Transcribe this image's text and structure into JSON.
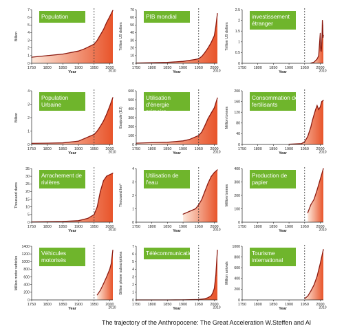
{
  "caption": "The trajectory of the Anthropocene: The Great Acceleration W.Steffen and Al",
  "colors": {
    "panel_label_bg": "#6fb52c",
    "panel_label_text": "#ffffff",
    "curve": "#8b1a10",
    "fill_dark": "#e8542a",
    "fill_light": "#fde7da",
    "marker": "#333333"
  },
  "x_axis": {
    "label": "Year",
    "ticks": [
      1750,
      1800,
      1850,
      1900,
      1950,
      2000
    ],
    "end_tick": "2010",
    "marker_year": 1950,
    "range": [
      1750,
      2010
    ]
  },
  "chart_data": [
    {
      "type": "area",
      "title": "Population",
      "ylabel": "Billion",
      "ylim": [
        0,
        7
      ],
      "yticks": [
        0,
        1,
        2,
        3,
        4,
        5,
        6,
        7
      ],
      "x": [
        1750,
        1800,
        1850,
        1900,
        1920,
        1940,
        1950,
        1960,
        1970,
        1980,
        1990,
        2000,
        2010
      ],
      "values": [
        0.8,
        1.0,
        1.2,
        1.6,
        1.9,
        2.3,
        2.5,
        3.0,
        3.7,
        4.4,
        5.3,
        6.1,
        6.9
      ]
    },
    {
      "type": "area",
      "title": "PIB mondial",
      "ylabel": "Trillion US dollars",
      "ylim": [
        0,
        70
      ],
      "yticks": [
        0,
        10,
        20,
        30,
        40,
        50,
        60,
        70
      ],
      "x": [
        1750,
        1800,
        1850,
        1900,
        1940,
        1950,
        1960,
        1970,
        1980,
        1990,
        2000,
        2005,
        2010
      ],
      "values": [
        0.4,
        0.7,
        1.2,
        2.5,
        5,
        6,
        9,
        14,
        20,
        27,
        36,
        48,
        65
      ]
    },
    {
      "type": "area",
      "title": "investissement étranger",
      "ylabel": "Trillion US dollars",
      "ylim": [
        0,
        2.5
      ],
      "yticks": [
        0,
        0.5,
        1.0,
        1.5,
        2.0,
        2.5
      ],
      "x": [
        1970,
        1980,
        1990,
        1995,
        2000,
        2001,
        2002,
        2003,
        2004,
        2005,
        2006,
        2007,
        2008,
        2009,
        2010
      ],
      "values": [
        0.01,
        0.05,
        0.2,
        0.35,
        1.4,
        0.8,
        0.6,
        0.55,
        0.7,
        0.95,
        1.4,
        2.0,
        1.75,
        1.2,
        1.3
      ]
    },
    {
      "type": "area",
      "title": "Population Urbaine",
      "ylabel": "Billion",
      "ylim": [
        0,
        4
      ],
      "yticks": [
        0,
        1,
        2,
        3,
        4
      ],
      "x": [
        1750,
        1800,
        1850,
        1900,
        1950,
        1960,
        1970,
        1980,
        1990,
        2000,
        2010
      ],
      "values": [
        0.08,
        0.1,
        0.12,
        0.25,
        0.75,
        1.0,
        1.35,
        1.75,
        2.25,
        2.85,
        3.5
      ]
    },
    {
      "type": "area",
      "title": "Utilisation d'énergie primaire",
      "ylabel": "Exajoule (EJ)",
      "ylim": [
        0,
        600
      ],
      "yticks": [
        0,
        100,
        200,
        300,
        400,
        500,
        600
      ],
      "x": [
        1750,
        1800,
        1850,
        1900,
        1920,
        1950,
        1960,
        1970,
        1980,
        1990,
        2000,
        2010
      ],
      "values": [
        15,
        20,
        25,
        40,
        55,
        100,
        140,
        210,
        290,
        350,
        410,
        520
      ]
    },
    {
      "type": "area",
      "title": "Consommation de fertilisants",
      "ylabel": "Million tonnes",
      "ylim": [
        0,
        200
      ],
      "yticks": [
        0,
        40,
        80,
        120,
        160,
        200
      ],
      "x": [
        1900,
        1940,
        1950,
        1960,
        1970,
        1975,
        1980,
        1985,
        1990,
        1995,
        2000,
        2005,
        2010
      ],
      "values": [
        1,
        3,
        10,
        30,
        65,
        90,
        110,
        130,
        145,
        130,
        140,
        160,
        165
      ]
    },
    {
      "type": "area",
      "title": "Arrachement de rivières",
      "ylabel": "Thousand dams",
      "ylim": [
        0,
        35
      ],
      "yticks": [
        0,
        5,
        10,
        15,
        20,
        25,
        30,
        35
      ],
      "x": [
        1750,
        1800,
        1850,
        1900,
        1930,
        1950,
        1960,
        1970,
        1980,
        1990,
        2000,
        2010
      ],
      "values": [
        0.2,
        0.3,
        0.5,
        1,
        2.5,
        5,
        10,
        20,
        27,
        30,
        31,
        32
      ]
    },
    {
      "type": "area",
      "title": "Utilisation de l'eau",
      "ylabel": "Thousand km³",
      "ylim": [
        0,
        4
      ],
      "yticks": [
        0,
        1,
        2,
        3,
        4
      ],
      "x": [
        1900,
        1920,
        1940,
        1950,
        1960,
        1970,
        1980,
        1990,
        2000,
        2010
      ],
      "values": [
        0.6,
        0.8,
        1.0,
        1.3,
        1.7,
        2.3,
        2.9,
        3.4,
        3.7,
        3.9
      ]
    },
    {
      "type": "area",
      "title": "Production de papier",
      "ylabel": "Million tonnes",
      "ylim": [
        0,
        400
      ],
      "yticks": [
        0,
        100,
        200,
        300,
        400
      ],
      "x": [
        1960,
        1970,
        1980,
        1990,
        2000,
        2010
      ],
      "values": [
        70,
        130,
        170,
        240,
        320,
        400
      ]
    },
    {
      "type": "area",
      "title": "Véhicules motorisés",
      "ylabel": "Million motor vehicles",
      "ylim": [
        0,
        1400
      ],
      "yticks": [
        0,
        200,
        400,
        600,
        800,
        1000,
        1200,
        1400
      ],
      "x": [
        1960,
        1970,
        1980,
        1990,
        2000,
        2005,
        2010
      ],
      "values": [
        130,
        250,
        420,
        600,
        800,
        950,
        1300
      ]
    },
    {
      "type": "area",
      "title": "Télécommunications",
      "ylabel": "Billion phone subscriptions",
      "ylim": [
        0,
        7
      ],
      "yticks": [
        0,
        1,
        2,
        3,
        4,
        5,
        6,
        7
      ],
      "x": [
        1750,
        1850,
        1900,
        1950,
        1970,
        1980,
        1990,
        1995,
        2000,
        2005,
        2010
      ],
      "values": [
        0,
        0,
        0.01,
        0.05,
        0.15,
        0.3,
        0.55,
        0.9,
        1.5,
        3.2,
        6.5
      ]
    },
    {
      "type": "area",
      "title": "Tourisme international",
      "ylabel": "Million arrivals",
      "ylim": [
        0,
        1000
      ],
      "yticks": [
        0,
        200,
        400,
        600,
        800,
        1000
      ],
      "x": [
        1950,
        1960,
        1970,
        1980,
        1990,
        2000,
        2010
      ],
      "values": [
        25,
        70,
        165,
        280,
        440,
        680,
        940
      ]
    }
  ]
}
